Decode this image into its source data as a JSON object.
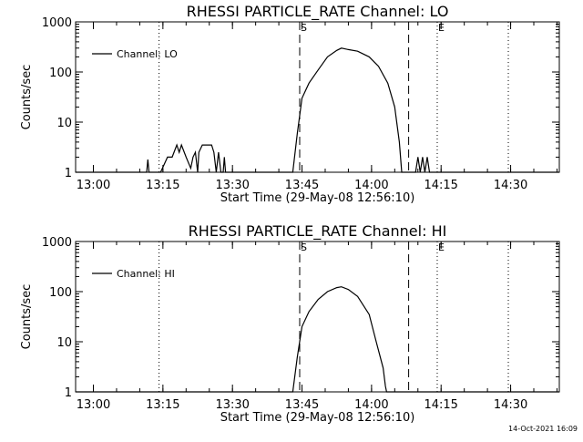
{
  "footer": {
    "timestamp": "14-Oct-2021 16:09"
  },
  "chart_data": [
    {
      "type": "line",
      "title": "RHESSI PARTICLE_RATE Channel: LO",
      "xlabel": "Start Time (29-May-08 12:56:10)",
      "ylabel": "Counts/sec",
      "yscale": "log",
      "ylim": [
        1,
        1000
      ],
      "xlim": [
        "12:56:10",
        "14:40:30"
      ],
      "xticks": [
        "13:00",
        "13:15",
        "13:30",
        "13:45",
        "14:00",
        "14:15",
        "14:30"
      ],
      "yticks": [
        "1",
        "10",
        "100",
        "1000"
      ],
      "legend": {
        "label": "Channel: LO",
        "position": "top-left"
      },
      "markers": [
        {
          "label": "",
          "time": "13:14:10",
          "style": "dotted"
        },
        {
          "label": "S",
          "time": "13:44:30",
          "style": "dashed"
        },
        {
          "label": "",
          "time": "14:08:00",
          "style": "dashed"
        },
        {
          "label": "E",
          "time": "14:14:10",
          "style": "dotted"
        },
        {
          "label": "",
          "time": "14:29:30",
          "style": "dotted"
        }
      ],
      "series": [
        {
          "name": "Channel: LO",
          "points": [
            [
              "12:56:10",
              1
            ],
            [
              "13:11:30",
              1
            ],
            [
              "13:11:45",
              1.8
            ],
            [
              "13:12:00",
              1
            ],
            [
              "13:14:30",
              1
            ],
            [
              "13:16:00",
              2
            ],
            [
              "13:17:00",
              2
            ],
            [
              "13:18:00",
              3.5
            ],
            [
              "13:18:30",
              2.5
            ],
            [
              "13:19:00",
              3.5
            ],
            [
              "13:20:00",
              2
            ],
            [
              "13:21:00",
              1.2
            ],
            [
              "13:21:30",
              2
            ],
            [
              "13:22:00",
              2.5
            ],
            [
              "13:22:30",
              1
            ],
            [
              "13:22:45",
              2.5
            ],
            [
              "13:23:30",
              3.5
            ],
            [
              "13:25:30",
              3.5
            ],
            [
              "13:26:00",
              2.5
            ],
            [
              "13:26:30",
              1
            ],
            [
              "13:27:00",
              2.5
            ],
            [
              "13:27:30",
              1
            ],
            [
              "13:28:00",
              1
            ],
            [
              "13:28:15",
              2
            ],
            [
              "13:28:30",
              1
            ],
            [
              "13:43:00",
              1
            ],
            [
              "13:44:00",
              6
            ],
            [
              "13:45:00",
              30
            ],
            [
              "13:46:30",
              60
            ],
            [
              "13:48:30",
              110
            ],
            [
              "13:50:30",
              200
            ],
            [
              "13:52:30",
              270
            ],
            [
              "13:53:30",
              300
            ],
            [
              "13:55:00",
              280
            ],
            [
              "13:57:00",
              260
            ],
            [
              "13:59:30",
              200
            ],
            [
              "14:01:30",
              130
            ],
            [
              "14:03:30",
              60
            ],
            [
              "14:05:00",
              20
            ],
            [
              "14:06:00",
              4
            ],
            [
              "14:06:30",
              1
            ],
            [
              "14:09:30",
              1
            ],
            [
              "14:10:00",
              2
            ],
            [
              "14:10:30",
              1
            ],
            [
              "14:11:00",
              2
            ],
            [
              "14:11:30",
              1
            ],
            [
              "14:12:00",
              2
            ],
            [
              "14:12:30",
              1
            ],
            [
              "14:40:30",
              1
            ]
          ]
        }
      ]
    },
    {
      "type": "line",
      "title": "RHESSI PARTICLE_RATE Channel: HI",
      "xlabel": "Start Time (29-May-08 12:56:10)",
      "ylabel": "Counts/sec",
      "yscale": "log",
      "ylim": [
        1,
        1000
      ],
      "xlim": [
        "12:56:10",
        "14:40:30"
      ],
      "xticks": [
        "13:00",
        "13:15",
        "13:30",
        "13:45",
        "14:00",
        "14:15",
        "14:30"
      ],
      "yticks": [
        "1",
        "10",
        "100",
        "1000"
      ],
      "legend": {
        "label": "Channel: HI",
        "position": "top-left"
      },
      "markers": [
        {
          "label": "",
          "time": "13:14:10",
          "style": "dotted"
        },
        {
          "label": "S",
          "time": "13:44:30",
          "style": "dashed"
        },
        {
          "label": "",
          "time": "14:08:00",
          "style": "dashed"
        },
        {
          "label": "E",
          "time": "14:14:10",
          "style": "dotted"
        },
        {
          "label": "",
          "time": "14:29:30",
          "style": "dotted"
        }
      ],
      "series": [
        {
          "name": "Channel: HI",
          "points": [
            [
              "12:56:10",
              1
            ],
            [
              "13:43:00",
              1
            ],
            [
              "13:44:00",
              5
            ],
            [
              "13:45:00",
              20
            ],
            [
              "13:46:30",
              40
            ],
            [
              "13:48:30",
              70
            ],
            [
              "13:50:30",
              100
            ],
            [
              "13:52:30",
              120
            ],
            [
              "13:53:30",
              125
            ],
            [
              "13:55:00",
              110
            ],
            [
              "13:57:00",
              80
            ],
            [
              "13:59:30",
              35
            ],
            [
              "14:01:00",
              10
            ],
            [
              "14:02:30",
              3
            ],
            [
              "14:03:00",
              1.3
            ],
            [
              "14:03:15",
              1
            ],
            [
              "14:40:30",
              1
            ]
          ]
        }
      ]
    }
  ]
}
